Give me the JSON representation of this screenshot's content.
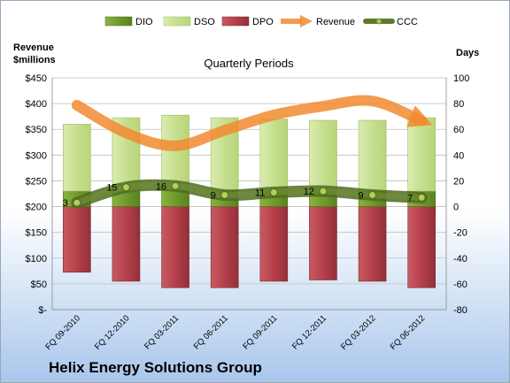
{
  "chart_data": {
    "type": "bar",
    "title": "Quarterly Periods",
    "footer": "Helix Energy Solutions Group",
    "left_axis_label": "Revenue\n$millions",
    "right_axis_label": "Days",
    "categories": [
      "FQ 09-2010",
      "FQ 12-2010",
      "FQ 03-2011",
      "FQ 06-2011",
      "FQ 09-2011",
      "FQ 12-2011",
      "FQ 03-2012",
      "FQ 06-2012"
    ],
    "left_axis": {
      "min": 0,
      "max": 450,
      "step": 50,
      "tick_labels": [
        "$-",
        "$50",
        "$100",
        "$150",
        "$200",
        "$250",
        "$300",
        "$350",
        "$400",
        "$450"
      ]
    },
    "right_axis": {
      "min": -80,
      "max": 100,
      "step": 20,
      "tick_labels": [
        "-80",
        "-60",
        "-40",
        "-20",
        "0",
        "20",
        "40",
        "60",
        "80",
        "100"
      ]
    },
    "legend_placement": "top",
    "series": [
      {
        "name": "DIO",
        "type": "stacked-bar",
        "axis": "right",
        "color": "#6f9a2c",
        "values": [
          12,
          12,
          13,
          12,
          12,
          12,
          12,
          12
        ]
      },
      {
        "name": "DSO",
        "type": "stacked-bar",
        "axis": "right",
        "color": "#cfe39a",
        "values": [
          52,
          57,
          58,
          57,
          56,
          55,
          55,
          57
        ]
      },
      {
        "name": "DPO",
        "type": "bar-negative",
        "axis": "right",
        "color": "#b5404a",
        "values": [
          -51,
          -58,
          -63,
          -63,
          -58,
          -57,
          -58,
          -63
        ]
      },
      {
        "name": "Revenue",
        "type": "line",
        "axis": "left",
        "color": "#f28a30",
        "values": [
          397,
          343,
          318,
          348,
          378,
          395,
          405,
          367
        ]
      },
      {
        "name": "CCC",
        "type": "line",
        "axis": "right",
        "color": "#5c7a2a",
        "values": [
          3,
          15,
          16,
          9,
          11,
          12,
          9,
          7
        ],
        "labels": [
          "3",
          "15",
          "16",
          "9",
          "11",
          "12",
          "9",
          "7"
        ]
      }
    ]
  }
}
